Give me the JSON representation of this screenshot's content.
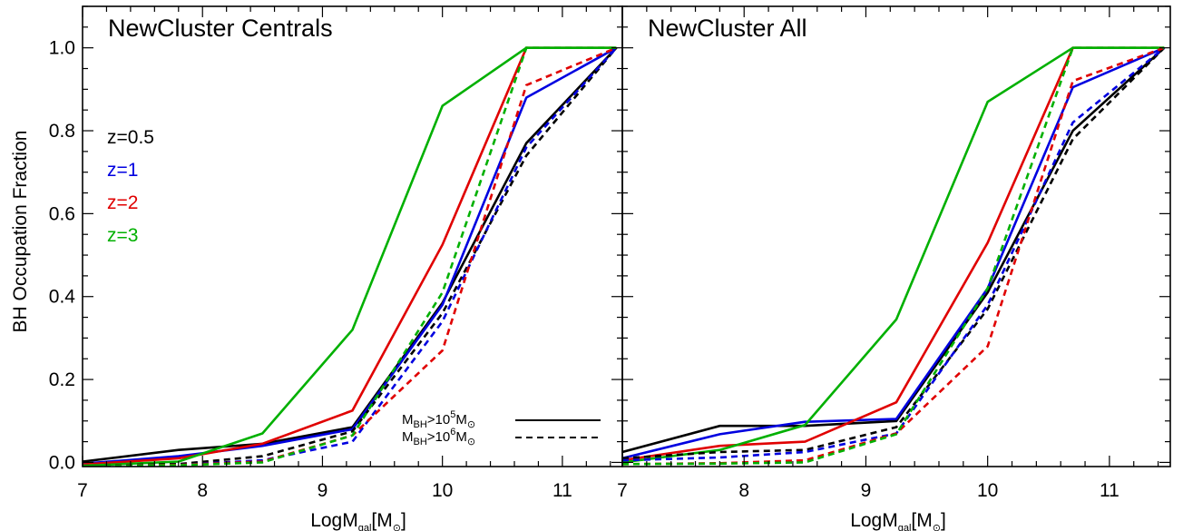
{
  "colors": {
    "z=0.5": "#000000",
    "z=1": "#0000e0",
    "z=2": "#e00000",
    "z=3": "#00b000"
  },
  "shared": {
    "ylabel": "BH Occupation Fraction",
    "xlabel": {
      "main": "LogM",
      "sub": "gal",
      "bracket_open": "[M",
      "sun": "⊙",
      "bracket_close": "]"
    },
    "legend": [
      "z=0.5",
      "z=1",
      "z=2",
      "z=3"
    ],
    "style_legend": [
      {
        "main": "M",
        "sub": "BH",
        "mid": ">10",
        "sup": "5",
        "end": "M",
        "sun": "⊙",
        "dash": "solid"
      },
      {
        "main": "M",
        "sub": "BH",
        "mid": ">10",
        "sup": "6",
        "end": "M",
        "sun": "⊙",
        "dash": "dashed"
      }
    ]
  },
  "chart_data": [
    {
      "type": "line",
      "title": "NewCluster Centrals",
      "xlim": [
        7,
        11.5
      ],
      "ylim": [
        -0.01,
        1.1
      ],
      "xticks": [
        7,
        8,
        9,
        10,
        11
      ],
      "xticklabels": [
        "7",
        "8",
        "9",
        "10",
        "11"
      ],
      "yticks": [
        0.0,
        0.2,
        0.4,
        0.6,
        0.8,
        1.0
      ],
      "yticklabels": [
        "0.0",
        "0.2",
        "0.4",
        "0.6",
        "0.8",
        "1.0"
      ],
      "series": [
        {
          "name": "z=0.5",
          "mbh": "1e5",
          "dash": "solid",
          "x": [
            7.0,
            7.8,
            8.5,
            9.25,
            10.0,
            10.7,
            11.45
          ],
          "y": [
            0.002,
            0.03,
            0.045,
            0.085,
            0.385,
            0.77,
            1.0
          ]
        },
        {
          "name": "z=1",
          "mbh": "1e5",
          "dash": "solid",
          "x": [
            7.0,
            7.8,
            8.5,
            9.25,
            10.0,
            10.7,
            11.45
          ],
          "y": [
            -0.003,
            0.015,
            0.04,
            0.08,
            0.38,
            0.88,
            1.0
          ]
        },
        {
          "name": "z=2",
          "mbh": "1e5",
          "dash": "solid",
          "x": [
            7.0,
            7.8,
            8.5,
            9.25,
            10.0,
            10.7,
            11.45
          ],
          "y": [
            -0.005,
            0.01,
            0.045,
            0.125,
            0.525,
            1.0,
            1.0
          ]
        },
        {
          "name": "z=3",
          "mbh": "1e5",
          "dash": "solid",
          "x": [
            7.0,
            7.8,
            8.5,
            9.25,
            10.0,
            10.7,
            11.45
          ],
          "y": [
            -0.008,
            0.002,
            0.07,
            0.32,
            0.86,
            1.0,
            1.0
          ]
        },
        {
          "name": "z=0.5",
          "mbh": "1e6",
          "dash": "dashed",
          "x": [
            7.0,
            7.8,
            8.5,
            9.25,
            10.0,
            10.7,
            11.45
          ],
          "y": [
            -0.008,
            -0.004,
            0.015,
            0.075,
            0.36,
            0.74,
            1.0
          ]
        },
        {
          "name": "z=1",
          "mbh": "1e6",
          "dash": "dashed",
          "x": [
            7.0,
            7.8,
            8.5,
            9.25,
            10.0,
            10.7,
            11.45
          ],
          "y": [
            -0.008,
            -0.006,
            0.005,
            0.05,
            0.34,
            0.76,
            1.0
          ]
        },
        {
          "name": "z=2",
          "mbh": "1e6",
          "dash": "dashed",
          "x": [
            7.0,
            7.8,
            8.5,
            9.25,
            10.0,
            10.7,
            11.45
          ],
          "y": [
            -0.008,
            -0.006,
            0.002,
            0.065,
            0.27,
            0.91,
            1.0
          ]
        },
        {
          "name": "z=3",
          "mbh": "1e6",
          "dash": "dashed",
          "x": [
            7.0,
            7.8,
            8.5,
            9.25,
            10.0,
            10.7,
            11.45
          ],
          "y": [
            -0.008,
            -0.007,
            0.0,
            0.065,
            0.41,
            1.0,
            1.0
          ]
        }
      ]
    },
    {
      "type": "line",
      "title": "NewCluster All",
      "xlim": [
        7,
        11.5
      ],
      "ylim": [
        -0.01,
        1.1
      ],
      "xticks": [
        7,
        8,
        9,
        10,
        11
      ],
      "xticklabels": [
        "7",
        "8",
        "9",
        "10",
        "11"
      ],
      "yticks": [
        0.0,
        0.2,
        0.4,
        0.6,
        0.8,
        1.0
      ],
      "yticklabels": [],
      "series": [
        {
          "name": "z=0.5",
          "mbh": "1e5",
          "dash": "solid",
          "x": [
            7.0,
            7.8,
            8.5,
            9.25,
            10.0,
            10.7,
            11.45
          ],
          "y": [
            0.025,
            0.088,
            0.088,
            0.1,
            0.41,
            0.8,
            1.0
          ]
        },
        {
          "name": "z=1",
          "mbh": "1e5",
          "dash": "solid",
          "x": [
            7.0,
            7.8,
            8.5,
            9.25,
            10.0,
            10.7,
            11.45
          ],
          "y": [
            0.01,
            0.068,
            0.098,
            0.105,
            0.42,
            0.905,
            1.0
          ]
        },
        {
          "name": "z=2",
          "mbh": "1e5",
          "dash": "solid",
          "x": [
            7.0,
            7.8,
            8.5,
            9.25,
            10.0,
            10.7,
            11.45
          ],
          "y": [
            0.005,
            0.04,
            0.05,
            0.145,
            0.53,
            1.0,
            1.0
          ]
        },
        {
          "name": "z=3",
          "mbh": "1e5",
          "dash": "solid",
          "x": [
            7.0,
            7.8,
            8.5,
            9.25,
            10.0,
            10.7,
            11.45
          ],
          "y": [
            0.0,
            0.03,
            0.09,
            0.345,
            0.87,
            1.0,
            1.0
          ]
        },
        {
          "name": "z=0.5",
          "mbh": "1e6",
          "dash": "dashed",
          "x": [
            7.0,
            7.8,
            8.5,
            9.25,
            10.0,
            10.7,
            11.45
          ],
          "y": [
            0.01,
            0.025,
            0.03,
            0.085,
            0.37,
            0.78,
            1.0
          ]
        },
        {
          "name": "z=1",
          "mbh": "1e6",
          "dash": "dashed",
          "x": [
            7.0,
            7.8,
            8.5,
            9.25,
            10.0,
            10.7,
            11.45
          ],
          "y": [
            0.005,
            0.012,
            0.025,
            0.07,
            0.38,
            0.82,
            1.0
          ]
        },
        {
          "name": "z=2",
          "mbh": "1e6",
          "dash": "dashed",
          "x": [
            7.0,
            7.8,
            8.5,
            9.25,
            10.0,
            10.7,
            11.45
          ],
          "y": [
            -0.004,
            -0.002,
            0.005,
            0.07,
            0.28,
            0.92,
            1.0
          ]
        },
        {
          "name": "z=3",
          "mbh": "1e6",
          "dash": "dashed",
          "x": [
            7.0,
            7.8,
            8.5,
            9.25,
            10.0,
            10.7,
            11.45
          ],
          "y": [
            -0.004,
            -0.003,
            0.0,
            0.068,
            0.42,
            1.0,
            1.0
          ]
        }
      ]
    }
  ]
}
